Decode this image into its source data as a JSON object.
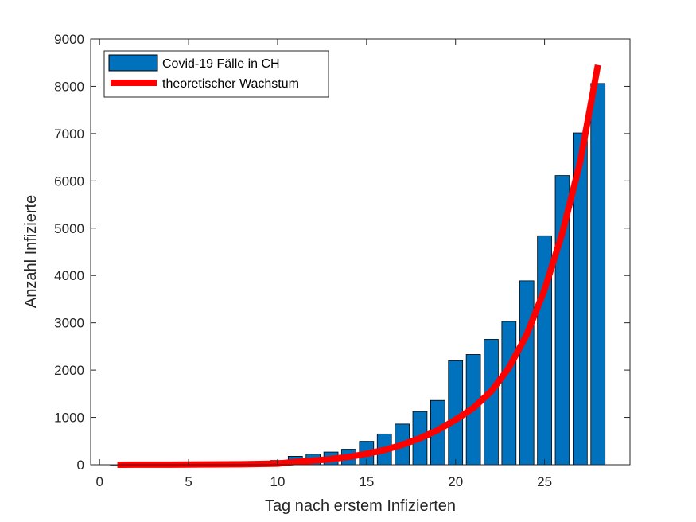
{
  "chart_data": {
    "type": "bar",
    "xlabel": "Tag nach erstem Infizierten",
    "ylabel": "Anzahl Infizierte",
    "xlim": [
      -0.5,
      29.8
    ],
    "ylim": [
      0,
      9000
    ],
    "xticks": [
      0,
      5,
      10,
      15,
      20,
      25
    ],
    "yticks": [
      0,
      1000,
      2000,
      3000,
      4000,
      5000,
      6000,
      7000,
      8000,
      9000
    ],
    "grid": false,
    "legend_position": "top-left",
    "series": [
      {
        "name": "Covid-19 Fälle in CH",
        "type": "bar",
        "color": "#0072BD",
        "x": [
          1,
          2,
          3,
          4,
          5,
          6,
          7,
          8,
          9,
          10,
          11,
          12,
          13,
          14,
          15,
          16,
          17,
          18,
          19,
          20,
          21,
          22,
          23,
          24,
          25,
          26,
          27,
          28
        ],
        "values": [
          1,
          1,
          1,
          8,
          9,
          18,
          27,
          42,
          56,
          90,
          178,
          223,
          268,
          327,
          494,
          650,
          860,
          1125,
          1359,
          2200,
          2330,
          2650,
          3028,
          3888,
          4840,
          6113,
          7014,
          8060
        ]
      },
      {
        "name": "theoretischer Wachstum",
        "type": "line",
        "color": "#FF0000",
        "x": [
          1,
          2,
          3,
          4,
          5,
          6,
          7,
          8,
          9,
          10,
          11,
          12,
          13,
          14,
          15,
          16,
          17,
          18,
          19,
          20,
          21,
          22,
          23,
          24,
          25,
          26,
          27,
          28
        ],
        "values": [
          1,
          1.4,
          2,
          2.8,
          4,
          5.7,
          8,
          11.4,
          16,
          23,
          60,
          85,
          120,
          165,
          230,
          310,
          420,
          560,
          730,
          950,
          1200,
          1550,
          2050,
          2750,
          3700,
          4900,
          6400,
          8450
        ]
      }
    ]
  }
}
